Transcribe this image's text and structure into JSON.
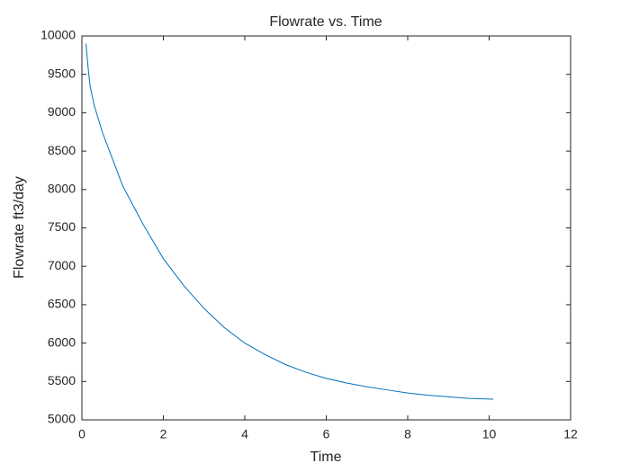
{
  "chart_data": {
    "type": "line",
    "title": "Flowrate vs. Time",
    "xlabel": "Time",
    "ylabel": "Flowrate ft3/day",
    "x": [
      0.1,
      0.15,
      0.2,
      0.3,
      0.5,
      0.75,
      1,
      1.5,
      2,
      2.5,
      3,
      3.5,
      4,
      4.5,
      5,
      5.5,
      6,
      6.5,
      7,
      7.5,
      8,
      8.5,
      9,
      9.5,
      10.1
    ],
    "series": [
      {
        "name": "Flowrate",
        "color": "#0072bd",
        "values": [
          9900,
          9600,
          9350,
          9100,
          8750,
          8400,
          8050,
          7550,
          7100,
          6750,
          6450,
          6200,
          6000,
          5850,
          5720,
          5620,
          5540,
          5480,
          5430,
          5390,
          5350,
          5320,
          5300,
          5280,
          5270
        ]
      }
    ],
    "xlim": [
      0,
      12
    ],
    "xticks": [
      0,
      2,
      4,
      6,
      8,
      10,
      12
    ],
    "ylim": [
      5000,
      10000
    ],
    "yticks": [
      5000,
      5500,
      6000,
      6500,
      7000,
      7500,
      8000,
      8500,
      9000,
      9500,
      10000
    ],
    "grid": false,
    "legend": false
  }
}
